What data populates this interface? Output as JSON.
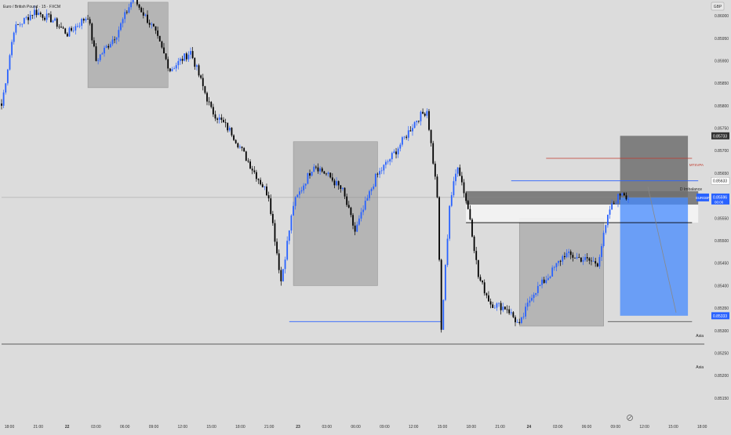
{
  "header": {
    "symbol_title": "Euro / British Pound · 15 · FXCM",
    "currency": "GBP"
  },
  "colors": {
    "background": "#dcdcdc",
    "bull_candle": "#2962ff",
    "bear_candle": "#000000",
    "zone_gray": "#9e9e9e",
    "target_blue": "#448aff",
    "stop_gray": "#6e6e6e",
    "axis_text": "#333333"
  },
  "price_axis": {
    "ticks": [
      "0.86000",
      "0.85950",
      "0.85900",
      "0.85850",
      "0.85800",
      "0.85750",
      "0.85700",
      "0.85650",
      "0.85600",
      "0.85550",
      "0.85500",
      "0.85450",
      "0.85400",
      "0.85350",
      "0.85300",
      "0.85250",
      "0.85200",
      "0.85150"
    ],
    "tags": [
      {
        "label": "0.85733",
        "kind": "dark"
      },
      {
        "label": "0.85633",
        "kind": "light"
      },
      {
        "label": "EURGBP",
        "value": "0.85596",
        "countdown": "00:06",
        "kind": "blue"
      },
      {
        "label": "0.85333",
        "kind": "blue"
      }
    ]
  },
  "time_axis": {
    "labels": [
      "18:00",
      "21:00",
      "22",
      "03:00",
      "06:00",
      "09:00",
      "12:00",
      "15:00",
      "18:00",
      "21:00",
      "23",
      "03:00",
      "06:00",
      "09:00",
      "12:00",
      "15:00",
      "18:00",
      "21:00",
      "24",
      "03:00",
      "06:00",
      "09:00",
      "12:00",
      "15:00",
      "18:00"
    ]
  },
  "annotations": {
    "imbalance_label": "D Imbalance",
    "upper_label": "MTSVPA",
    "asia_label_1": "Asia",
    "asia_label_2": "Asia"
  },
  "chart_data": {
    "type": "candlestick",
    "symbol": "EURGBP",
    "timeframe": "15",
    "last_price": 0.85596,
    "ylim": [
      0.8513,
      0.8603
    ],
    "time_ticks": [
      "18:00",
      "21:00",
      "22",
      "03:00",
      "06:00",
      "09:00",
      "12:00",
      "15:00",
      "18:00",
      "21:00",
      "23",
      "03:00",
      "06:00",
      "09:00",
      "12:00",
      "15:00",
      "18:00",
      "21:00",
      "24",
      "03:00",
      "06:00",
      "09:00",
      "12:00",
      "15:00",
      "18:00"
    ],
    "waypoints": [
      [
        0,
        0.858
      ],
      [
        6,
        0.8597
      ],
      [
        16,
        0.8601
      ],
      [
        25,
        0.8599
      ],
      [
        32,
        0.8596
      ],
      [
        42,
        0.86
      ],
      [
        46,
        0.859
      ],
      [
        56,
        0.8596
      ],
      [
        64,
        0.8604
      ],
      [
        74,
        0.8597
      ],
      [
        82,
        0.8588
      ],
      [
        92,
        0.8592
      ],
      [
        102,
        0.8579
      ],
      [
        112,
        0.8574
      ],
      [
        122,
        0.8566
      ],
      [
        130,
        0.856
      ],
      [
        136,
        0.8541
      ],
      [
        142,
        0.8558
      ],
      [
        152,
        0.8567
      ],
      [
        160,
        0.8564
      ],
      [
        166,
        0.8561
      ],
      [
        172,
        0.8552
      ],
      [
        182,
        0.8564
      ],
      [
        192,
        0.857
      ],
      [
        202,
        0.8577
      ],
      [
        207,
        0.8579
      ],
      [
        212,
        0.856
      ],
      [
        214,
        0.853
      ],
      [
        218,
        0.8558
      ],
      [
        222,
        0.8567
      ],
      [
        228,
        0.8555
      ],
      [
        232,
        0.8542
      ],
      [
        238,
        0.8536
      ],
      [
        246,
        0.8535
      ],
      [
        252,
        0.8531
      ],
      [
        258,
        0.8538
      ],
      [
        266,
        0.8542
      ],
      [
        274,
        0.8547
      ],
      [
        282,
        0.8546
      ],
      [
        290,
        0.8545
      ],
      [
        296,
        0.8557
      ],
      [
        302,
        0.8561
      ],
      [
        306,
        0.8559
      ]
    ],
    "zones": [
      {
        "name": "asia-range-22",
        "x_from": 42,
        "x_to": 81,
        "y_from": 0.8584,
        "y_to": 0.8603,
        "style": "gray"
      },
      {
        "name": "asia-range-23",
        "x_from": 142,
        "x_to": 183,
        "y_from": 0.854,
        "y_to": 0.8572,
        "style": "gray"
      },
      {
        "name": "asia-range-24",
        "x_from": 252,
        "x_to": 293,
        "y_from": 0.8531,
        "y_to": 0.8555,
        "style": "gray"
      },
      {
        "name": "imbalance-dark",
        "x_from": 226,
        "x_to": 339,
        "y_from": 0.8558,
        "y_to": 0.8561,
        "style": "dark"
      },
      {
        "name": "imbalance-light",
        "x_from": 226,
        "x_to": 339,
        "y_from": 0.8554,
        "y_to": 0.8558,
        "style": "light"
      },
      {
        "name": "stop-zone",
        "x_from": 301,
        "x_to": 334,
        "y_from": 0.85596,
        "y_to": 0.85733,
        "style": "stop"
      },
      {
        "name": "target-zone",
        "x_from": 301,
        "x_to": 334,
        "y_from": 0.85333,
        "y_to": 0.85596,
        "style": "target"
      }
    ],
    "levels": [
      {
        "name": "asia-low-23",
        "x_from": 140,
        "x_to": 214,
        "price": 0.8532,
        "color": "#2962ff"
      },
      {
        "name": "asia-low-24",
        "x_from": 295,
        "x_to": 336,
        "price": 0.8532,
        "color": "#555555"
      },
      {
        "name": "imbalance-line",
        "x_from": 248,
        "x_to": 339,
        "price": 0.85633,
        "color": "#2962ff"
      },
      {
        "name": "upper-line",
        "x_from": 265,
        "x_to": 336,
        "price": 0.85683,
        "color": "#c0392b"
      },
      {
        "name": "range-line",
        "x_from": 226,
        "x_to": 336,
        "price": 0.8554,
        "color": "#000000"
      },
      {
        "name": "asia-low-outer",
        "x_from": 0,
        "x_to": 342,
        "price": 0.8527,
        "color": "#333333"
      },
      {
        "name": "current-price",
        "x_from": 0,
        "x_to": 342,
        "price": 0.85596,
        "color": "#8a8a8a"
      }
    ]
  }
}
